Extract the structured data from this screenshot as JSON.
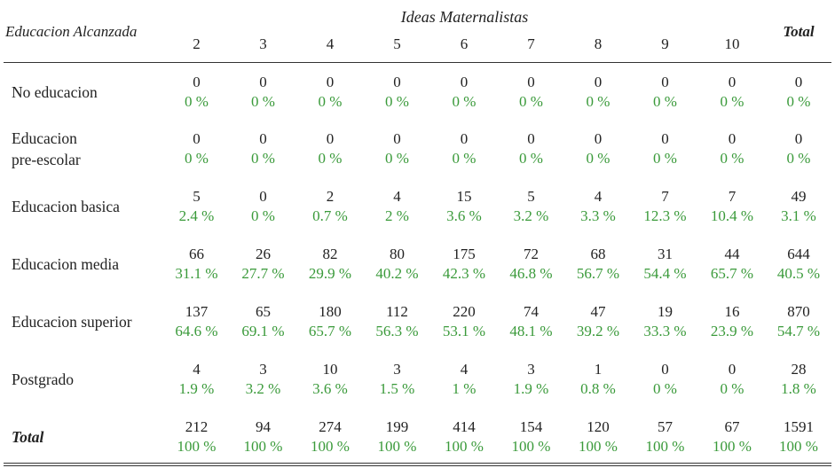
{
  "table": {
    "group_header": "Ideas Maternalistas",
    "stub_header": "Educacion Alcanzada",
    "total_header": "Total",
    "columns": [
      "2",
      "3",
      "4",
      "5",
      "6",
      "7",
      "8",
      "9",
      "10"
    ],
    "rows": [
      {
        "label": "No educacion",
        "label_lines": [
          "No educacion"
        ],
        "counts": [
          "0",
          "0",
          "0",
          "0",
          "0",
          "0",
          "0",
          "0",
          "0",
          "0"
        ],
        "pcts": [
          "0 %",
          "0 %",
          "0 %",
          "0 %",
          "0 %",
          "0 %",
          "0 %",
          "0 %",
          "0 %",
          "0 %"
        ]
      },
      {
        "label": "Educacion pre-escolar",
        "label_lines": [
          "Educacion",
          "pre-escolar"
        ],
        "counts": [
          "0",
          "0",
          "0",
          "0",
          "0",
          "0",
          "0",
          "0",
          "0",
          "0"
        ],
        "pcts": [
          "0 %",
          "0 %",
          "0 %",
          "0 %",
          "0 %",
          "0 %",
          "0 %",
          "0 %",
          "0 %",
          "0 %"
        ]
      },
      {
        "label": "Educacion basica",
        "label_lines": [
          "Educacion basica"
        ],
        "counts": [
          "5",
          "0",
          "2",
          "4",
          "15",
          "5",
          "4",
          "7",
          "7",
          "49"
        ],
        "pcts": [
          "2.4 %",
          "0 %",
          "0.7 %",
          "2 %",
          "3.6 %",
          "3.2 %",
          "3.3 %",
          "12.3 %",
          "10.4 %",
          "3.1 %"
        ]
      },
      {
        "label": "Educacion media",
        "label_lines": [
          "Educacion media"
        ],
        "counts": [
          "66",
          "26",
          "82",
          "80",
          "175",
          "72",
          "68",
          "31",
          "44",
          "644"
        ],
        "pcts": [
          "31.1 %",
          "27.7 %",
          "29.9 %",
          "40.2 %",
          "42.3 %",
          "46.8 %",
          "56.7 %",
          "54.4 %",
          "65.7 %",
          "40.5 %"
        ]
      },
      {
        "label": "Educacion superior",
        "label_lines": [
          "Educacion superior"
        ],
        "counts": [
          "137",
          "65",
          "180",
          "112",
          "220",
          "74",
          "47",
          "19",
          "16",
          "870"
        ],
        "pcts": [
          "64.6 %",
          "69.1 %",
          "65.7 %",
          "56.3 %",
          "53.1 %",
          "48.1 %",
          "39.2 %",
          "33.3 %",
          "23.9 %",
          "54.7 %"
        ]
      },
      {
        "label": "Postgrado",
        "label_lines": [
          "Postgrado"
        ],
        "counts": [
          "4",
          "3",
          "10",
          "3",
          "4",
          "3",
          "1",
          "0",
          "0",
          "28"
        ],
        "pcts": [
          "1.9 %",
          "3.2 %",
          "3.6 %",
          "1.5 %",
          "1 %",
          "1.9 %",
          "0.8 %",
          "0 %",
          "0 %",
          "1.8 %"
        ]
      }
    ],
    "total_row": {
      "label": "Total",
      "counts": [
        "212",
        "94",
        "274",
        "199",
        "414",
        "154",
        "120",
        "57",
        "67",
        "1591"
      ],
      "pcts": [
        "100 %",
        "100 %",
        "100 %",
        "100 %",
        "100 %",
        "100 %",
        "100 %",
        "100 %",
        "100 %",
        "100 %"
      ]
    }
  },
  "colors": {
    "count_text": "#222222",
    "percent_text": "#3a9a3a",
    "rule": "#333333"
  }
}
